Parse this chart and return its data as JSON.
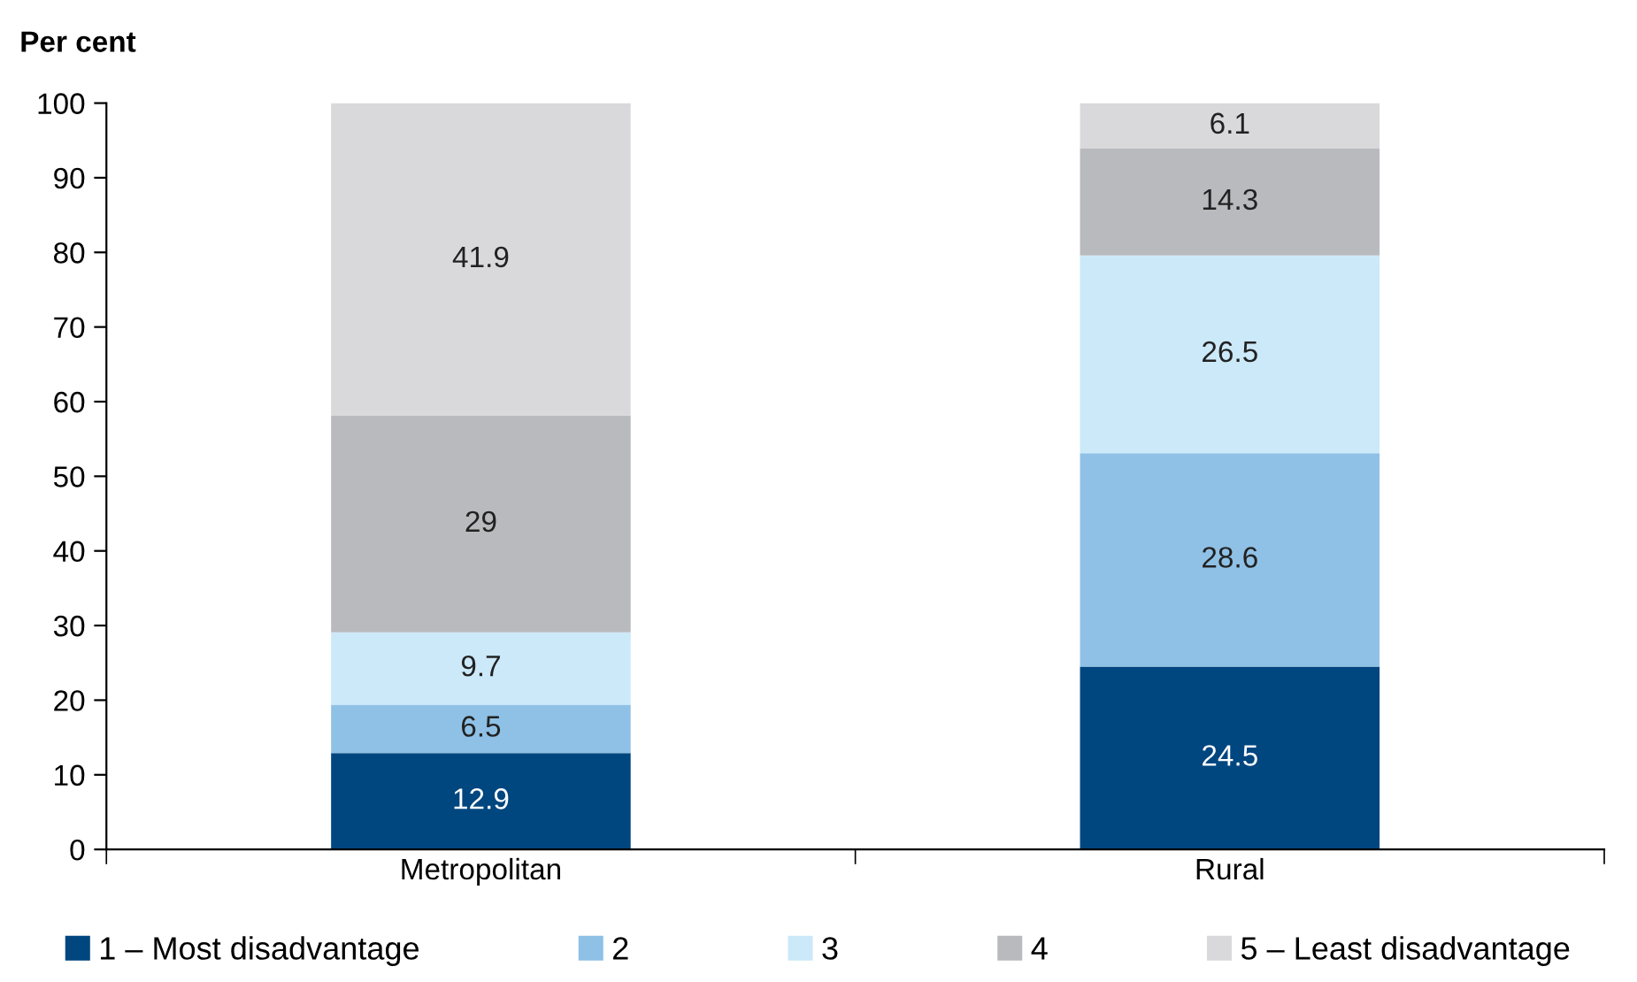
{
  "chart_data": {
    "type": "bar",
    "stacked": true,
    "ylabel": "Per cent",
    "categories": [
      "Metropolitan",
      "Rural"
    ],
    "series": [
      {
        "name": "1 – Most disadvantage",
        "color": "#00467f",
        "values": [
          12.9,
          24.5
        ]
      },
      {
        "name": "2",
        "color": "#8fc1e6",
        "values": [
          6.5,
          28.6
        ]
      },
      {
        "name": "3",
        "color": "#cce9f9",
        "values": [
          9.7,
          26.5
        ]
      },
      {
        "name": "4",
        "color": "#b9babe",
        "values": [
          29,
          14.3
        ]
      },
      {
        "name": "5 – Least disadvantage",
        "color": "#d9d9db",
        "values": [
          41.9,
          6.1
        ]
      }
    ],
    "ylim": [
      0,
      100
    ],
    "yticks": [
      0,
      10,
      20,
      30,
      40,
      50,
      60,
      70,
      80,
      90,
      100
    ],
    "data_labels": true,
    "legend": "bottom",
    "grid": false
  }
}
